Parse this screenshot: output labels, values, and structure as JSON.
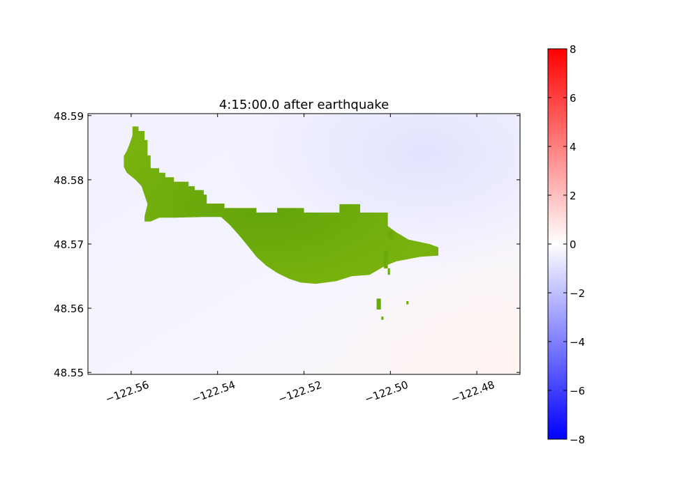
{
  "chart_data": {
    "type": "heatmap",
    "title": "4:15:00.0 after earthquake",
    "xlabel": "",
    "ylabel": "",
    "xlim": [
      -122.57,
      -122.47
    ],
    "ylim": [
      48.5497,
      48.5903
    ],
    "xticks": [
      -122.56,
      -122.54,
      -122.52,
      -122.5,
      -122.48
    ],
    "xtick_labels": [
      "−122.56",
      "−122.54",
      "−122.52",
      "−122.50",
      "−122.48"
    ],
    "yticks": [
      48.55,
      48.56,
      48.57,
      48.58,
      48.59
    ],
    "ytick_labels": [
      "48.55",
      "48.56",
      "48.57",
      "48.58",
      "48.59"
    ],
    "xtick_rotation_deg": 20,
    "grid": false,
    "colormap": "bwr",
    "colorbar": {
      "vmin": -8,
      "vmax": 8,
      "ticks": [
        8,
        6,
        4,
        2,
        0,
        -2,
        -4,
        -6,
        -8
      ],
      "tick_labels": [
        "8",
        "6",
        "4",
        "2",
        "0",
        "−2",
        "−4",
        "−6",
        "−8"
      ],
      "low_color": "#0000ff",
      "mid_color": "#ffffff",
      "high_color": "#ff0000"
    },
    "field_description_values": {
      "background_level_approx": -0.5,
      "northeast_min_approx": -1.0,
      "southeast_max_approx": 0.3
    },
    "land_color": "#6aaa0c",
    "land_polygon": [
      [
        -122.5597,
        48.5883
      ],
      [
        -122.5583,
        48.5883
      ],
      [
        -122.5583,
        48.5876
      ],
      [
        -122.5569,
        48.5876
      ],
      [
        -122.5569,
        48.5862
      ],
      [
        -122.5562,
        48.5862
      ],
      [
        -122.5562,
        48.5838
      ],
      [
        -122.5555,
        48.5838
      ],
      [
        -122.5555,
        48.5818
      ],
      [
        -122.5535,
        48.5818
      ],
      [
        -122.5535,
        48.5811
      ],
      [
        -122.5521,
        48.5811
      ],
      [
        -122.5521,
        48.5804
      ],
      [
        -122.5501,
        48.5804
      ],
      [
        -122.5501,
        48.5797
      ],
      [
        -122.5467,
        48.5797
      ],
      [
        -122.5467,
        48.579
      ],
      [
        -122.5453,
        48.579
      ],
      [
        -122.5453,
        48.5784
      ],
      [
        -122.5432,
        48.5784
      ],
      [
        -122.5432,
        48.5777
      ],
      [
        -122.5425,
        48.5777
      ],
      [
        -122.5425,
        48.5763
      ],
      [
        -122.5384,
        48.5763
      ],
      [
        -122.5384,
        48.5756
      ],
      [
        -122.531,
        48.5756
      ],
      [
        -122.531,
        48.5749
      ],
      [
        -122.5262,
        48.5749
      ],
      [
        -122.5262,
        48.5756
      ],
      [
        -122.52,
        48.5756
      ],
      [
        -122.52,
        48.5749
      ],
      [
        -122.5118,
        48.5749
      ],
      [
        -122.5118,
        48.5762
      ],
      [
        -122.507,
        48.5762
      ],
      [
        -122.507,
        48.5749
      ],
      [
        -122.5006,
        48.5749
      ],
      [
        -122.5006,
        48.5728
      ],
      [
        -122.4986,
        48.5718
      ],
      [
        -122.4958,
        48.5707
      ],
      [
        -122.491,
        48.57
      ],
      [
        -122.4889,
        48.5695
      ],
      [
        -122.4889,
        48.5682
      ],
      [
        -122.4931,
        48.568
      ],
      [
        -122.4986,
        48.5673
      ],
      [
        -122.5012,
        48.5666
      ],
      [
        -122.5048,
        48.5652
      ],
      [
        -122.5089,
        48.565
      ],
      [
        -122.5126,
        48.5642
      ],
      [
        -122.5173,
        48.5638
      ],
      [
        -122.5208,
        48.564
      ],
      [
        -122.5235,
        48.5646
      ],
      [
        -122.5262,
        48.5655
      ],
      [
        -122.5287,
        48.5666
      ],
      [
        -122.531,
        48.568
      ],
      [
        -122.533,
        48.5697
      ],
      [
        -122.5352,
        48.5715
      ],
      [
        -122.5372,
        48.573
      ],
      [
        -122.5392,
        48.5742
      ],
      [
        -122.5432,
        48.5742
      ],
      [
        -122.5495,
        48.5741
      ],
      [
        -122.5535,
        48.5741
      ],
      [
        -122.5555,
        48.5735
      ],
      [
        -122.5569,
        48.5735
      ],
      [
        -122.5569,
        48.5743
      ],
      [
        -122.5562,
        48.5762
      ],
      [
        -122.5569,
        48.5776
      ],
      [
        -122.5576,
        48.579
      ],
      [
        -122.559,
        48.58
      ],
      [
        -122.561,
        48.5811
      ],
      [
        -122.5617,
        48.582
      ],
      [
        -122.5617,
        48.5837
      ],
      [
        -122.561,
        48.5845
      ],
      [
        -122.5603,
        48.5857
      ],
      [
        -122.5597,
        48.5869
      ]
    ],
    "land_islets": [
      [
        [
          -122.5006,
          48.572
        ],
        [
          -122.4993,
          48.572
        ],
        [
          -122.4993,
          48.5708
        ],
        [
          -122.5006,
          48.5708
        ]
      ],
      [
        [
          -122.5015,
          48.569
        ],
        [
          -122.5006,
          48.569
        ],
        [
          -122.5006,
          48.5662
        ],
        [
          -122.5015,
          48.5662
        ]
      ],
      [
        [
          -122.5006,
          48.5662
        ],
        [
          -122.5001,
          48.5662
        ],
        [
          -122.5001,
          48.5652
        ],
        [
          -122.5006,
          48.5652
        ]
      ],
      [
        [
          -122.5032,
          48.5615
        ],
        [
          -122.5022,
          48.5615
        ],
        [
          -122.5022,
          48.5598
        ],
        [
          -122.5032,
          48.5598
        ]
      ],
      [
        [
          -122.5021,
          48.5587
        ],
        [
          -122.5016,
          48.5587
        ],
        [
          -122.5016,
          48.5582
        ],
        [
          -122.5021,
          48.5582
        ]
      ],
      [
        [
          -122.4963,
          48.5611
        ],
        [
          -122.4958,
          48.5611
        ],
        [
          -122.4958,
          48.5606
        ],
        [
          -122.4963,
          48.5606
        ]
      ]
    ]
  }
}
